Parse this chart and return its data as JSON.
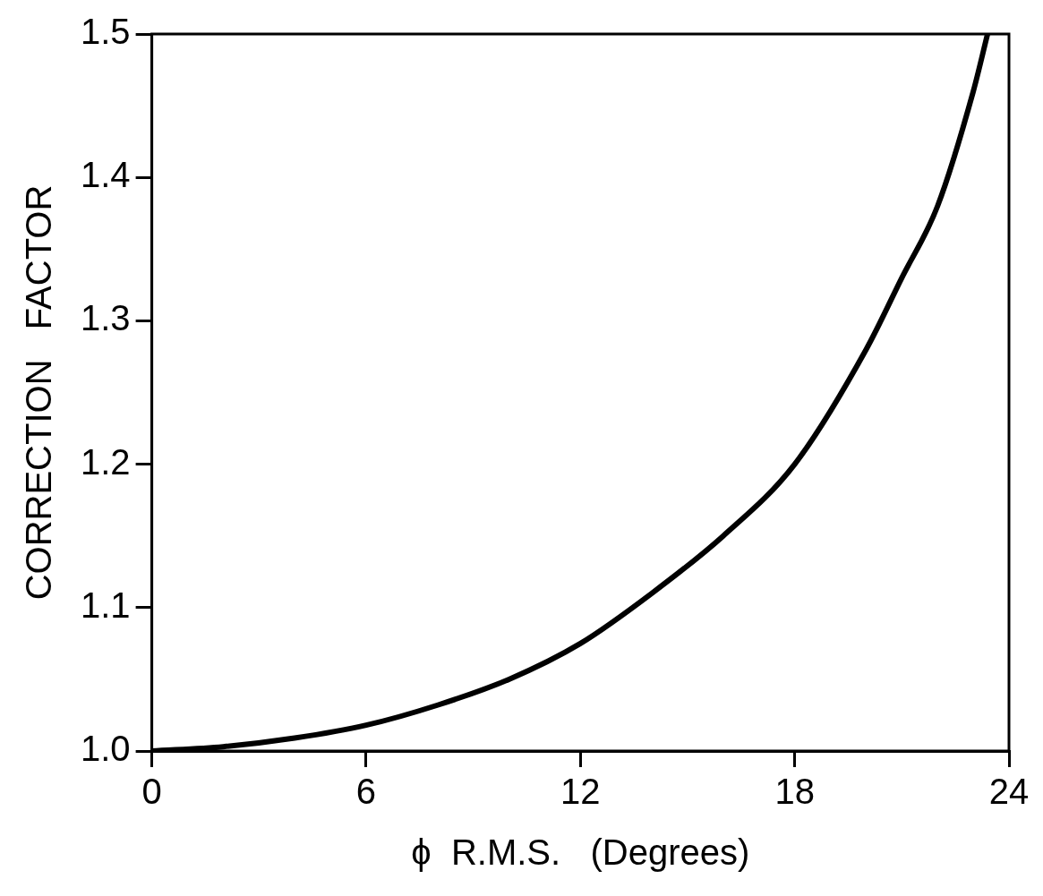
{
  "chart_data": {
    "type": "line",
    "xlabel": "ϕ  R.M.S.   (Degrees)",
    "ylabel": "CORRECTION   FACTOR",
    "x": [
      0,
      2,
      4,
      6,
      8,
      10,
      12,
      14,
      16,
      18,
      20,
      21,
      22,
      23,
      23.4
    ],
    "series": [
      {
        "color": "#000000",
        "values": [
          1.0,
          1.003,
          1.009,
          1.018,
          1.032,
          1.05,
          1.075,
          1.11,
          1.15,
          1.2,
          1.28,
          1.33,
          1.38,
          1.46,
          1.5
        ]
      }
    ],
    "xlim": [
      0,
      24
    ],
    "ylim": [
      1.0,
      1.5
    ],
    "xticks": [
      0,
      6,
      12,
      18,
      24
    ],
    "yticks": [
      {
        "value": 1.0,
        "label": "1.0"
      },
      {
        "value": 1.1,
        "label": "1.1"
      },
      {
        "value": 1.2,
        "label": "1.2"
      },
      {
        "value": 1.3,
        "label": "1.3"
      },
      {
        "value": 1.4,
        "label": "1.4"
      },
      {
        "value": 1.5,
        "label": "1.5"
      }
    ],
    "marker": "none",
    "line_style": "solid",
    "legend": false
  }
}
